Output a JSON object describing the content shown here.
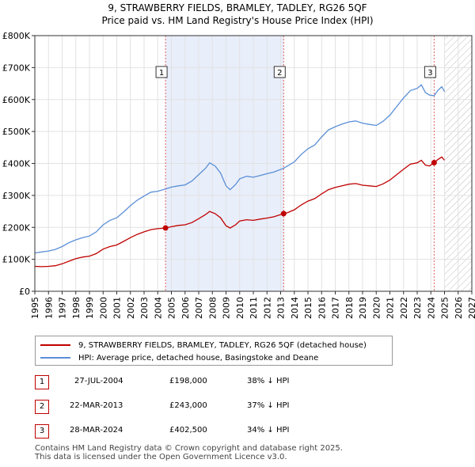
{
  "chart_data": {
    "type": "line",
    "title": "9, STRAWBERRY FIELDS, BRAMLEY, TADLEY, RG26 5QF",
    "subtitle": "Price paid vs. HM Land Registry's House Price Index (HPI)",
    "xlabel": "",
    "ylabel": "",
    "xlim": [
      1995,
      2027
    ],
    "ylim": [
      0,
      800000
    ],
    "x_ticks": [
      "1995",
      "1996",
      "1997",
      "1998",
      "1999",
      "2000",
      "2001",
      "2002",
      "2003",
      "2004",
      "2005",
      "2006",
      "2007",
      "2008",
      "2009",
      "2010",
      "2011",
      "2012",
      "2013",
      "2014",
      "2015",
      "2016",
      "2017",
      "2018",
      "2019",
      "2020",
      "2021",
      "2022",
      "2023",
      "2024",
      "2025",
      "2026",
      "2027"
    ],
    "y_ticks": [
      {
        "value": 0,
        "label": "£0"
      },
      {
        "value": 100000,
        "label": "£100K"
      },
      {
        "value": 200000,
        "label": "£200K"
      },
      {
        "value": 300000,
        "label": "£300K"
      },
      {
        "value": 400000,
        "label": "£400K"
      },
      {
        "value": 500000,
        "label": "£500K"
      },
      {
        "value": 600000,
        "label": "£600K"
      },
      {
        "value": 700000,
        "label": "£700K"
      },
      {
        "value": 800000,
        "label": "£800K"
      }
    ],
    "grid": true,
    "shaded_periods": [
      [
        2004.57,
        2013.22
      ]
    ],
    "future_hatch_from": 2025.0,
    "series": [
      {
        "name": "9, STRAWBERRY FIELDS, BRAMLEY, TADLEY, RG26 5QF (detached house)",
        "color": "#c00000",
        "points": [
          [
            1995.0,
            78000
          ],
          [
            1995.5,
            77000
          ],
          [
            1996.0,
            78000
          ],
          [
            1996.5,
            80000
          ],
          [
            1997.0,
            86000
          ],
          [
            1997.5,
            94000
          ],
          [
            1998.0,
            102000
          ],
          [
            1998.5,
            107000
          ],
          [
            1999.0,
            110000
          ],
          [
            1999.5,
            118000
          ],
          [
            2000.0,
            132000
          ],
          [
            2000.5,
            140000
          ],
          [
            2001.0,
            145000
          ],
          [
            2001.5,
            156000
          ],
          [
            2002.0,
            168000
          ],
          [
            2002.5,
            178000
          ],
          [
            2003.0,
            186000
          ],
          [
            2003.5,
            193000
          ],
          [
            2004.0,
            196000
          ],
          [
            2004.57,
            198000
          ],
          [
            2005.0,
            202000
          ],
          [
            2005.5,
            206000
          ],
          [
            2006.0,
            208000
          ],
          [
            2006.5,
            215000
          ],
          [
            2007.0,
            227000
          ],
          [
            2007.5,
            240000
          ],
          [
            2007.8,
            250000
          ],
          [
            2008.2,
            243000
          ],
          [
            2008.6,
            230000
          ],
          [
            2009.0,
            205000
          ],
          [
            2009.3,
            198000
          ],
          [
            2009.7,
            208000
          ],
          [
            2010.0,
            220000
          ],
          [
            2010.5,
            224000
          ],
          [
            2011.0,
            222000
          ],
          [
            2011.5,
            226000
          ],
          [
            2012.0,
            229000
          ],
          [
            2012.5,
            233000
          ],
          [
            2013.22,
            243000
          ],
          [
            2013.5,
            246000
          ],
          [
            2014.0,
            255000
          ],
          [
            2014.5,
            270000
          ],
          [
            2015.0,
            282000
          ],
          [
            2015.5,
            290000
          ],
          [
            2016.0,
            305000
          ],
          [
            2016.5,
            318000
          ],
          [
            2017.0,
            325000
          ],
          [
            2017.5,
            330000
          ],
          [
            2018.0,
            335000
          ],
          [
            2018.5,
            337000
          ],
          [
            2019.0,
            332000
          ],
          [
            2019.5,
            330000
          ],
          [
            2020.0,
            328000
          ],
          [
            2020.5,
            336000
          ],
          [
            2021.0,
            348000
          ],
          [
            2021.5,
            365000
          ],
          [
            2022.0,
            382000
          ],
          [
            2022.5,
            398000
          ],
          [
            2023.0,
            402000
          ],
          [
            2023.3,
            410000
          ],
          [
            2023.6,
            395000
          ],
          [
            2023.9,
            392000
          ],
          [
            2024.24,
            402500
          ],
          [
            2024.5,
            412000
          ],
          [
            2024.8,
            420000
          ],
          [
            2025.0,
            410000
          ]
        ]
      },
      {
        "name": "HPI: Average price, detached house, Basingstoke and Deane",
        "color": "#5b8fd6",
        "points": [
          [
            1995.0,
            120000
          ],
          [
            1995.5,
            123000
          ],
          [
            1996.0,
            126000
          ],
          [
            1996.5,
            131000
          ],
          [
            1997.0,
            140000
          ],
          [
            1997.5,
            152000
          ],
          [
            1998.0,
            161000
          ],
          [
            1998.5,
            168000
          ],
          [
            1999.0,
            173000
          ],
          [
            1999.5,
            186000
          ],
          [
            2000.0,
            208000
          ],
          [
            2000.5,
            222000
          ],
          [
            2001.0,
            230000
          ],
          [
            2001.5,
            248000
          ],
          [
            2002.0,
            268000
          ],
          [
            2002.5,
            285000
          ],
          [
            2003.0,
            298000
          ],
          [
            2003.5,
            310000
          ],
          [
            2004.0,
            313000
          ],
          [
            2004.57,
            320000
          ],
          [
            2005.0,
            326000
          ],
          [
            2005.5,
            330000
          ],
          [
            2006.0,
            333000
          ],
          [
            2006.5,
            345000
          ],
          [
            2007.0,
            365000
          ],
          [
            2007.5,
            385000
          ],
          [
            2007.8,
            402000
          ],
          [
            2008.2,
            392000
          ],
          [
            2008.6,
            370000
          ],
          [
            2009.0,
            330000
          ],
          [
            2009.3,
            318000
          ],
          [
            2009.7,
            334000
          ],
          [
            2010.0,
            352000
          ],
          [
            2010.5,
            360000
          ],
          [
            2011.0,
            357000
          ],
          [
            2011.5,
            362000
          ],
          [
            2012.0,
            368000
          ],
          [
            2012.5,
            373000
          ],
          [
            2013.22,
            385000
          ],
          [
            2013.5,
            392000
          ],
          [
            2014.0,
            405000
          ],
          [
            2014.5,
            428000
          ],
          [
            2015.0,
            446000
          ],
          [
            2015.5,
            458000
          ],
          [
            2016.0,
            483000
          ],
          [
            2016.5,
            505000
          ],
          [
            2017.0,
            515000
          ],
          [
            2017.5,
            523000
          ],
          [
            2018.0,
            530000
          ],
          [
            2018.5,
            533000
          ],
          [
            2019.0,
            526000
          ],
          [
            2019.5,
            522000
          ],
          [
            2020.0,
            519000
          ],
          [
            2020.5,
            532000
          ],
          [
            2021.0,
            551000
          ],
          [
            2021.5,
            578000
          ],
          [
            2022.0,
            605000
          ],
          [
            2022.5,
            628000
          ],
          [
            2023.0,
            635000
          ],
          [
            2023.3,
            646000
          ],
          [
            2023.6,
            622000
          ],
          [
            2023.9,
            614000
          ],
          [
            2024.24,
            612000
          ],
          [
            2024.5,
            628000
          ],
          [
            2024.8,
            640000
          ],
          [
            2025.0,
            625000
          ]
        ]
      }
    ],
    "sales": [
      {
        "id": "1",
        "x": 2004.57,
        "value": 198000,
        "date": "27-JUL-2004",
        "price": "£198,000",
        "hpi": "38% ↓ HPI"
      },
      {
        "id": "2",
        "x": 2013.22,
        "value": 243000,
        "date": "22-MAR-2013",
        "price": "£243,000",
        "hpi": "37% ↓ HPI"
      },
      {
        "id": "3",
        "x": 2024.24,
        "value": 402500,
        "date": "28-MAR-2024",
        "price": "£402,500",
        "hpi": "34% ↓ HPI"
      }
    ]
  },
  "footer": {
    "line1": "Contains HM Land Registry data © Crown copyright and database right 2025.",
    "line2": "This data is licensed under the Open Government Licence v3.0."
  }
}
